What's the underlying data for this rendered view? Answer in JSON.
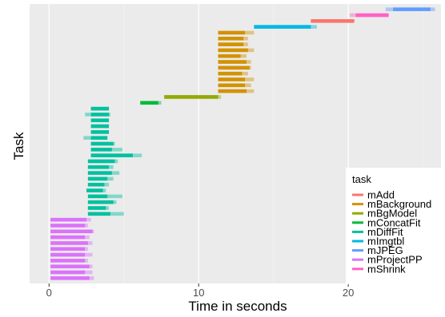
{
  "chart_data": {
    "type": "gantt",
    "xlabel": "Time in seconds",
    "ylabel": "Task",
    "xlim": [
      -1.3,
      26.2
    ],
    "x_ticks": [
      0,
      10,
      20
    ],
    "grid": true,
    "legend": {
      "title": "task",
      "placement": "right-bottom",
      "entries": [
        {
          "name": "mAdd",
          "color": "#F8766D"
        },
        {
          "name": "mBackground",
          "color": "#D39200"
        },
        {
          "name": "mBgModel",
          "color": "#93AA00"
        },
        {
          "name": "mConcatFit",
          "color": "#00BA38"
        },
        {
          "name": "mDiffFit",
          "color": "#00C19F"
        },
        {
          "name": "mImgtbl",
          "color": "#00B9E3"
        },
        {
          "name": "mJPEG",
          "color": "#619CFF"
        },
        {
          "name": "mProjectPP",
          "color": "#DB72FB"
        },
        {
          "name": "mShrink",
          "color": "#FF61C3"
        }
      ]
    },
    "tasks": [
      {
        "task": "mProjectPP",
        "start": 0.1,
        "end": 2.7,
        "end_light": 3.0
      },
      {
        "task": "mProjectPP",
        "start": 0.1,
        "end": 2.4,
        "end_light": 2.9
      },
      {
        "task": "mProjectPP",
        "start": 0.1,
        "end": 2.7,
        "end_light": 2.9
      },
      {
        "task": "mProjectPP",
        "start": 0.1,
        "end": 2.4,
        "end_light": 2.6
      },
      {
        "task": "mProjectPP",
        "start": 0.1,
        "end": 2.4,
        "end_light": 2.9
      },
      {
        "task": "mProjectPP",
        "start": 0.1,
        "end": 2.4,
        "end_light": 2.6
      },
      {
        "task": "mProjectPP",
        "start": 0.1,
        "end": 2.6,
        "end_light": 2.9
      },
      {
        "task": "mProjectPP",
        "start": 0.1,
        "end": 2.4,
        "end_light": 2.7
      },
      {
        "task": "mProjectPP",
        "start": 0.1,
        "end": 2.9,
        "end_light": 3.0
      },
      {
        "task": "mProjectPP",
        "start": 0.1,
        "end": 2.4,
        "end_light": 2.6
      },
      {
        "task": "mProjectPP",
        "start": 0.1,
        "end": 2.5,
        "end_light": 2.8
      },
      {
        "task": "mDiffFit",
        "start": 2.6,
        "end": 4.1,
        "end_light": 5.0
      },
      {
        "task": "mDiffFit",
        "start": 2.6,
        "end": 3.8,
        "end_light": 4.0
      },
      {
        "task": "mDiffFit",
        "start": 2.6,
        "end": 4.3,
        "end_light": 4.5
      },
      {
        "task": "mDiffFit",
        "start": 2.6,
        "end": 3.9,
        "end_light": 4.9
      },
      {
        "task": "mDiffFit",
        "start": 2.5,
        "end": 3.6,
        "end_light": 3.8
      },
      {
        "task": "mDiffFit",
        "start": 2.6,
        "end": 3.7,
        "end_light": 4.0
      },
      {
        "task": "mDiffFit",
        "start": 2.6,
        "end": 3.9,
        "end_light": 4.3
      },
      {
        "task": "mDiffFit",
        "start": 2.6,
        "end": 4.2,
        "end_light": 4.7
      },
      {
        "task": "mDiffFit",
        "start": 2.6,
        "end": 4.0,
        "end_light": 4.3
      },
      {
        "task": "mDiffFit",
        "start": 2.6,
        "end": 4.4,
        "end_light": 4.6
      },
      {
        "task": "mDiffFit",
        "start": 2.8,
        "end": 5.6,
        "end_light": 6.2
      },
      {
        "task": "mDiffFit",
        "start": 2.8,
        "end": 4.2,
        "end_light": 4.9
      },
      {
        "task": "mDiffFit",
        "start": 2.8,
        "end": 4.3,
        "end_light": 4.4
      },
      {
        "task": "mDiffFit",
        "start": 2.8,
        "end": 3.9,
        "end_light": 3.9,
        "light_start": 2.3
      },
      {
        "task": "mDiffFit",
        "start": 2.8,
        "end": 4.0,
        "end_light": 4.0
      },
      {
        "task": "mDiffFit",
        "start": 2.8,
        "end": 4.0,
        "end_light": 4.0
      },
      {
        "task": "mDiffFit",
        "start": 2.8,
        "end": 4.0,
        "end_light": 4.0
      },
      {
        "task": "mDiffFit",
        "start": 2.8,
        "end": 4.0,
        "end_light": 4.1,
        "light_start": 2.4
      },
      {
        "task": "mDiffFit",
        "start": 2.8,
        "end": 4.0,
        "end_light": 4.0
      },
      {
        "task": "mConcatFit",
        "start": 6.1,
        "end": 7.3,
        "end_light": 7.5
      },
      {
        "task": "mBgModel",
        "start": 7.7,
        "end": 11.3,
        "end_light": 11.5
      },
      {
        "task": "mBackground",
        "start": 11.3,
        "end": 13.2,
        "end_light": 13.7
      },
      {
        "task": "mBackground",
        "start": 11.3,
        "end": 13.1,
        "end_light": 13.5
      },
      {
        "task": "mBackground",
        "start": 11.3,
        "end": 13.1,
        "end_light": 13.7
      },
      {
        "task": "mBackground",
        "start": 11.3,
        "end": 12.9,
        "end_light": 13.3
      },
      {
        "task": "mBackground",
        "start": 11.3,
        "end": 13.4,
        "end_light": 13.5
      },
      {
        "task": "mBackground",
        "start": 11.3,
        "end": 13.2,
        "end_light": 13.5
      },
      {
        "task": "mBackground",
        "start": 11.3,
        "end": 12.8,
        "end_light": 13.2
      },
      {
        "task": "mBackground",
        "start": 11.3,
        "end": 13.3,
        "end_light": 13.7
      },
      {
        "task": "mBackground",
        "start": 11.3,
        "end": 13.0,
        "end_light": 13.3
      },
      {
        "task": "mBackground",
        "start": 11.3,
        "end": 13.0,
        "end_light": 13.3
      },
      {
        "task": "mBackground",
        "start": 11.3,
        "end": 13.1,
        "end_light": 13.7
      },
      {
        "task": "mImgtbl",
        "start": 13.7,
        "end": 17.5,
        "end_light": 17.9
      },
      {
        "task": "mAdd",
        "start": 17.5,
        "end": 20.4,
        "end_light": 20.4
      },
      {
        "task": "mShrink",
        "start": 20.5,
        "end": 22.7,
        "end_light": 22.7,
        "light_start": 20.1
      },
      {
        "task": "mJPEG",
        "start": 23.0,
        "end": 25.5,
        "end_light": 25.8,
        "light_start": 22.5
      }
    ]
  }
}
